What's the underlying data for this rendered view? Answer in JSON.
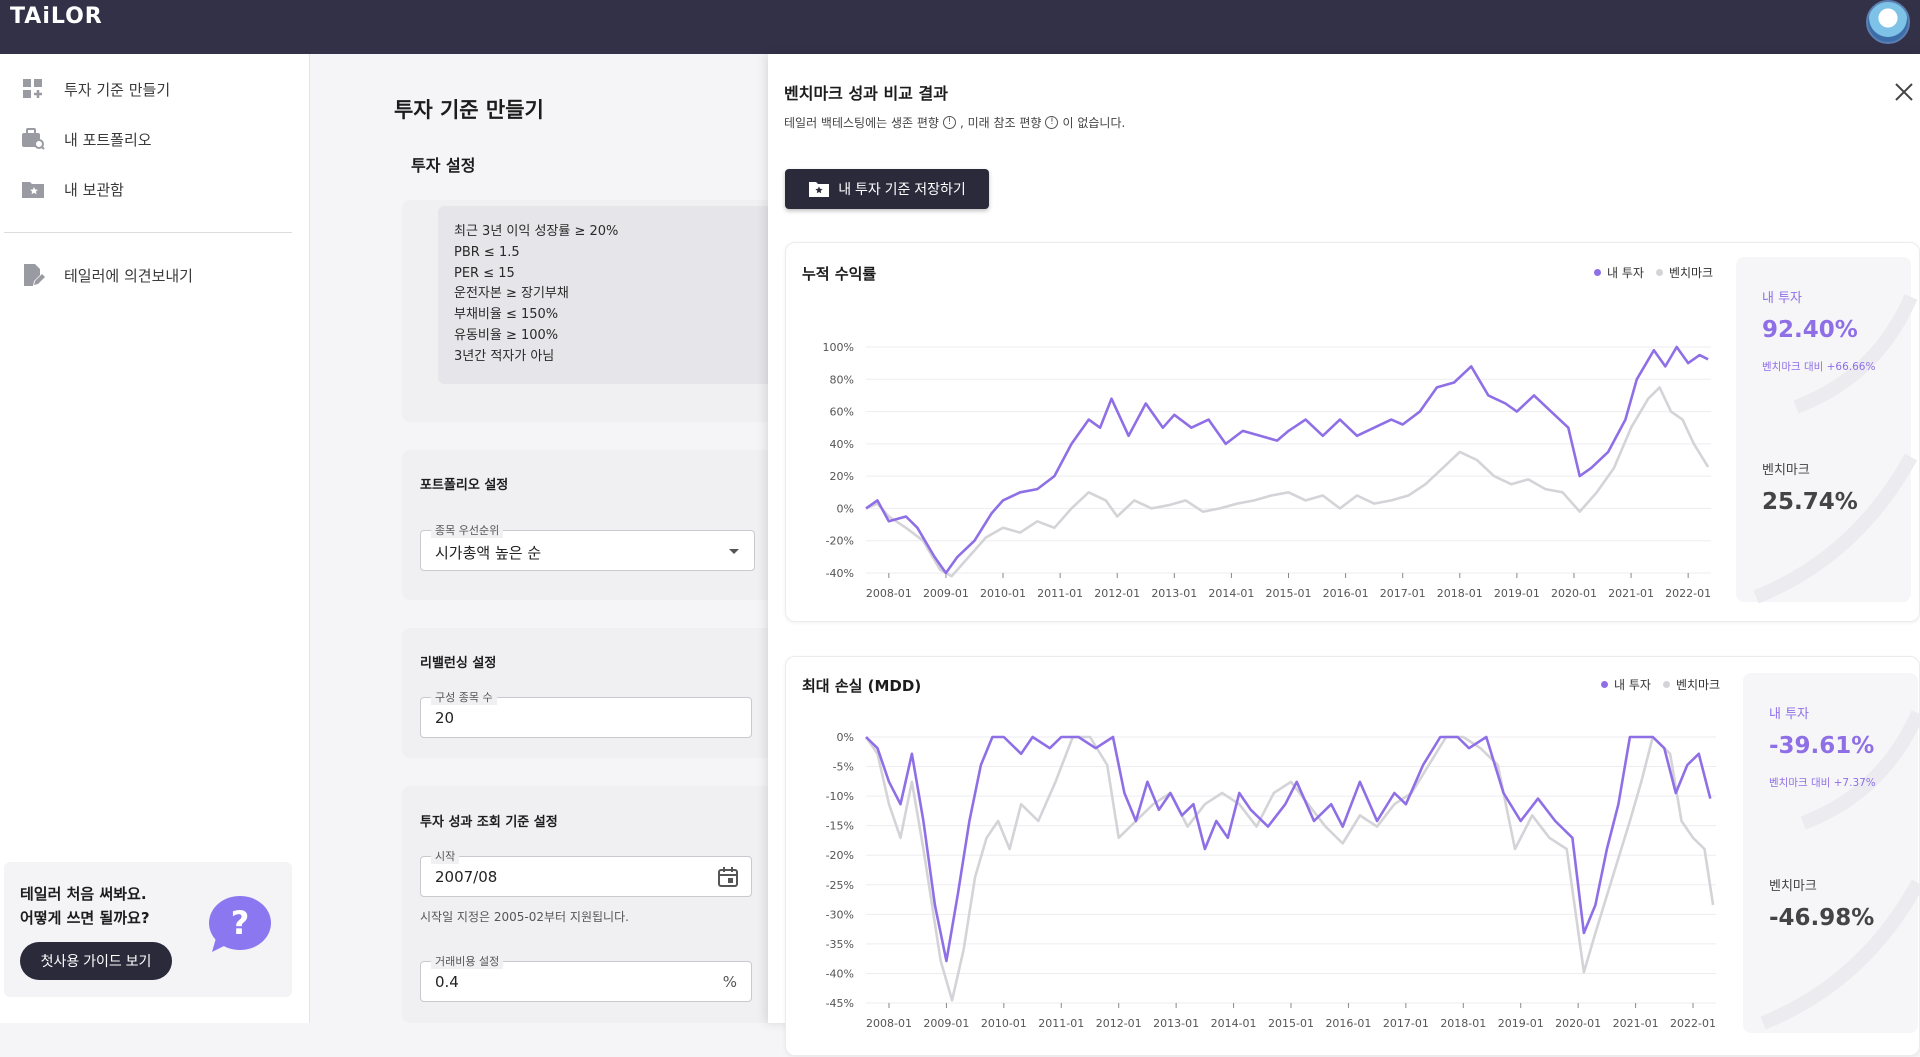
{
  "app": {
    "logo": "TAiLOR"
  },
  "sidebar": {
    "items": [
      {
        "label": "투자 기준 만들기",
        "icon": "dashboard-add-icon"
      },
      {
        "label": "내 포트폴리오",
        "icon": "portfolio-search-icon"
      },
      {
        "label": "내 보관함",
        "icon": "folder-star-icon"
      },
      {
        "label": "테일러에 의견보내기",
        "icon": "edit-note-icon"
      }
    ],
    "guide": {
      "line1": "테일러 처음 써봐요.",
      "line2": "어떻게 쓰면 될까요?",
      "button": "첫사용 가이드 보기"
    }
  },
  "main": {
    "title": "투자 기준 만들기",
    "investment_section": "투자 설정",
    "criteria": [
      "최근 3년 이익 성장률 ≥ 20%",
      "PBR ≤ 1.5",
      "PER ≤ 15",
      "운전자본 ≥ 장기부채",
      "부채비율 ≤ 150%",
      "유동비율 ≥ 100%",
      "3년간 적자가 아님"
    ],
    "portfolio": {
      "title": "포트폴리오 설정",
      "field_label": "종목 우선순위",
      "field_value": "시가총액 높은 순"
    },
    "rebalance": {
      "title": "리밸런싱 설정",
      "field_label": "구성 종목 수",
      "field_value": "20"
    },
    "period": {
      "title": "투자 성과 조회 기준 설정",
      "start_label": "시작",
      "start_value": "2007/08",
      "helper": "시작일 지정은 2005-02부터 지원됩니다.",
      "fee_label": "거래비용 설정",
      "fee_value": "0.4",
      "fee_unit": "%"
    }
  },
  "panel": {
    "title": "벤치마크 성과 비교 결과",
    "subtitle_part1": "테일러 백테스팅에는 생존 편향",
    "subtitle_part2": ", 미래 참조 편향",
    "subtitle_part3": "이 없습니다.",
    "info_glyph": "!",
    "save_button": "내 투자 기준 저장하기",
    "legend_mine": "내 투자",
    "legend_bench": "벤치마크"
  },
  "colors": {
    "mine": "#8f6fe6",
    "bench": "#d4d4d8",
    "topbar": "#333148",
    "button": "#2b2a3a"
  },
  "stats": {
    "cum": {
      "mine_label": "내 투자",
      "mine_value": "92.40%",
      "mine_note": "벤치마크 대비 +66.66%",
      "bench_label": "벤치마크",
      "bench_value": "25.74%"
    },
    "mdd": {
      "mine_label": "내 투자",
      "mine_value": "-39.61%",
      "mine_note": "벤치마크 대비 +7.37%",
      "bench_label": "벤치마크",
      "bench_value": "-46.98%"
    }
  },
  "chart_data": [
    {
      "type": "line",
      "title": "누적 수익률",
      "x_ticks": [
        "2008-01",
        "2009-01",
        "2010-01",
        "2011-01",
        "2012-01",
        "2013-01",
        "2014-01",
        "2015-01",
        "2016-01",
        "2017-01",
        "2018-01",
        "2019-01",
        "2020-01",
        "2021-01",
        "2022-01"
      ],
      "y_ticks": [
        "100%",
        "80%",
        "60%",
        "40%",
        "20%",
        "0%",
        "-20%",
        "-40%"
      ],
      "ylim": [
        -40,
        100
      ],
      "xlim": [
        2007.6,
        2022.4
      ],
      "series": [
        {
          "name": "내 투자",
          "points": [
            [
              2007.6,
              0
            ],
            [
              2007.8,
              5
            ],
            [
              2008.0,
              -8
            ],
            [
              2008.3,
              -5
            ],
            [
              2008.5,
              -12
            ],
            [
              2008.8,
              -30
            ],
            [
              2009.0,
              -40
            ],
            [
              2009.2,
              -30
            ],
            [
              2009.5,
              -20
            ],
            [
              2009.8,
              -3
            ],
            [
              2010.0,
              5
            ],
            [
              2010.3,
              10
            ],
            [
              2010.6,
              12
            ],
            [
              2010.9,
              20
            ],
            [
              2011.2,
              40
            ],
            [
              2011.5,
              55
            ],
            [
              2011.7,
              50
            ],
            [
              2011.9,
              68
            ],
            [
              2012.2,
              45
            ],
            [
              2012.5,
              65
            ],
            [
              2012.8,
              50
            ],
            [
              2013.0,
              58
            ],
            [
              2013.3,
              50
            ],
            [
              2013.6,
              55
            ],
            [
              2013.9,
              40
            ],
            [
              2014.2,
              48
            ],
            [
              2014.5,
              45
            ],
            [
              2014.8,
              42
            ],
            [
              2015.0,
              48
            ],
            [
              2015.3,
              55
            ],
            [
              2015.6,
              45
            ],
            [
              2015.9,
              55
            ],
            [
              2016.2,
              45
            ],
            [
              2016.5,
              50
            ],
            [
              2016.8,
              55
            ],
            [
              2017.0,
              52
            ],
            [
              2017.3,
              60
            ],
            [
              2017.6,
              75
            ],
            [
              2017.9,
              78
            ],
            [
              2018.2,
              88
            ],
            [
              2018.5,
              70
            ],
            [
              2018.8,
              65
            ],
            [
              2019.0,
              60
            ],
            [
              2019.3,
              70
            ],
            [
              2019.6,
              60
            ],
            [
              2019.9,
              50
            ],
            [
              2020.1,
              20
            ],
            [
              2020.3,
              25
            ],
            [
              2020.6,
              35
            ],
            [
              2020.9,
              55
            ],
            [
              2021.1,
              80
            ],
            [
              2021.4,
              98
            ],
            [
              2021.6,
              88
            ],
            [
              2021.8,
              100
            ],
            [
              2022.0,
              90
            ],
            [
              2022.2,
              95
            ],
            [
              2022.35,
              92.4
            ]
          ]
        },
        {
          "name": "벤치마크",
          "points": [
            [
              2007.6,
              0
            ],
            [
              2007.8,
              3
            ],
            [
              2008.0,
              -5
            ],
            [
              2008.3,
              -12
            ],
            [
              2008.6,
              -20
            ],
            [
              2008.9,
              -38
            ],
            [
              2009.1,
              -42
            ],
            [
              2009.4,
              -30
            ],
            [
              2009.7,
              -18
            ],
            [
              2010.0,
              -12
            ],
            [
              2010.3,
              -15
            ],
            [
              2010.6,
              -8
            ],
            [
              2010.9,
              -12
            ],
            [
              2011.2,
              0
            ],
            [
              2011.5,
              10
            ],
            [
              2011.8,
              5
            ],
            [
              2012.0,
              -5
            ],
            [
              2012.3,
              5
            ],
            [
              2012.6,
              0
            ],
            [
              2012.9,
              2
            ],
            [
              2013.2,
              5
            ],
            [
              2013.5,
              -2
            ],
            [
              2013.8,
              0
            ],
            [
              2014.1,
              3
            ],
            [
              2014.4,
              5
            ],
            [
              2014.7,
              8
            ],
            [
              2015.0,
              10
            ],
            [
              2015.3,
              5
            ],
            [
              2015.6,
              8
            ],
            [
              2015.9,
              0
            ],
            [
              2016.2,
              8
            ],
            [
              2016.5,
              3
            ],
            [
              2016.8,
              5
            ],
            [
              2017.1,
              8
            ],
            [
              2017.4,
              15
            ],
            [
              2017.7,
              25
            ],
            [
              2018.0,
              35
            ],
            [
              2018.3,
              30
            ],
            [
              2018.6,
              20
            ],
            [
              2018.9,
              15
            ],
            [
              2019.2,
              18
            ],
            [
              2019.5,
              12
            ],
            [
              2019.8,
              10
            ],
            [
              2020.1,
              -2
            ],
            [
              2020.4,
              10
            ],
            [
              2020.7,
              25
            ],
            [
              2021.0,
              50
            ],
            [
              2021.3,
              68
            ],
            [
              2021.5,
              75
            ],
            [
              2021.7,
              60
            ],
            [
              2021.9,
              55
            ],
            [
              2022.1,
              40
            ],
            [
              2022.35,
              25.74
            ]
          ]
        }
      ]
    },
    {
      "type": "line",
      "title": "최대 손실 (MDD)",
      "x_ticks": [
        "2008-01",
        "2009-01",
        "2010-01",
        "2011-01",
        "2012-01",
        "2013-01",
        "2014-01",
        "2015-01",
        "2016-01",
        "2017-01",
        "2018-01",
        "2019-01",
        "2020-01",
        "2021-01",
        "2022-01"
      ],
      "y_ticks": [
        "0%",
        "-5%",
        "-10%",
        "-15%",
        "-20%",
        "-25%",
        "-30%",
        "-35%",
        "-40%",
        "-45%"
      ],
      "ylim": [
        -47.5,
        0
      ],
      "xlim": [
        2007.6,
        2022.4
      ],
      "series": [
        {
          "name": "내 투자",
          "points": [
            [
              2007.6,
              0
            ],
            [
              2007.8,
              -2
            ],
            [
              2008.0,
              -8
            ],
            [
              2008.2,
              -12
            ],
            [
              2008.4,
              -3
            ],
            [
              2008.6,
              -15
            ],
            [
              2008.8,
              -30
            ],
            [
              2009.0,
              -40
            ],
            [
              2009.2,
              -28
            ],
            [
              2009.4,
              -15
            ],
            [
              2009.6,
              -5
            ],
            [
              2009.8,
              0
            ],
            [
              2010.0,
              0
            ],
            [
              2010.3,
              -3
            ],
            [
              2010.5,
              0
            ],
            [
              2010.8,
              -2
            ],
            [
              2011.0,
              0
            ],
            [
              2011.3,
              0
            ],
            [
              2011.6,
              -2
            ],
            [
              2011.9,
              0
            ],
            [
              2012.1,
              -10
            ],
            [
              2012.3,
              -15
            ],
            [
              2012.5,
              -8
            ],
            [
              2012.7,
              -13
            ],
            [
              2012.9,
              -10
            ],
            [
              2013.1,
              -14
            ],
            [
              2013.3,
              -12
            ],
            [
              2013.5,
              -20
            ],
            [
              2013.7,
              -15
            ],
            [
              2013.9,
              -18
            ],
            [
              2014.1,
              -10
            ],
            [
              2014.3,
              -13
            ],
            [
              2014.6,
              -16
            ],
            [
              2014.9,
              -12
            ],
            [
              2015.1,
              -8
            ],
            [
              2015.4,
              -15
            ],
            [
              2015.7,
              -12
            ],
            [
              2015.9,
              -16
            ],
            [
              2016.2,
              -8
            ],
            [
              2016.5,
              -15
            ],
            [
              2016.8,
              -10
            ],
            [
              2017.0,
              -12
            ],
            [
              2017.3,
              -5
            ],
            [
              2017.6,
              0
            ],
            [
              2017.9,
              0
            ],
            [
              2018.1,
              -2
            ],
            [
              2018.4,
              0
            ],
            [
              2018.7,
              -10
            ],
            [
              2019.0,
              -15
            ],
            [
              2019.3,
              -11
            ],
            [
              2019.6,
              -15
            ],
            [
              2019.9,
              -18
            ],
            [
              2020.1,
              -35
            ],
            [
              2020.3,
              -30
            ],
            [
              2020.5,
              -20
            ],
            [
              2020.7,
              -12
            ],
            [
              2020.9,
              0
            ],
            [
              2021.1,
              0
            ],
            [
              2021.3,
              0
            ],
            [
              2021.5,
              -2
            ],
            [
              2021.7,
              -10
            ],
            [
              2021.9,
              -5
            ],
            [
              2022.1,
              -3
            ],
            [
              2022.3,
              -11
            ]
          ]
        },
        {
          "name": "벤치마크",
          "points": [
            [
              2007.6,
              0
            ],
            [
              2007.8,
              -3
            ],
            [
              2008.0,
              -12
            ],
            [
              2008.2,
              -18
            ],
            [
              2008.4,
              -8
            ],
            [
              2008.6,
              -20
            ],
            [
              2008.9,
              -40
            ],
            [
              2009.1,
              -47
            ],
            [
              2009.3,
              -38
            ],
            [
              2009.5,
              -25
            ],
            [
              2009.7,
              -18
            ],
            [
              2009.9,
              -15
            ],
            [
              2010.1,
              -20
            ],
            [
              2010.3,
              -12
            ],
            [
              2010.6,
              -15
            ],
            [
              2010.9,
              -8
            ],
            [
              2011.2,
              0
            ],
            [
              2011.5,
              0
            ],
            [
              2011.8,
              -5
            ],
            [
              2012.0,
              -18
            ],
            [
              2012.3,
              -15
            ],
            [
              2012.6,
              -12
            ],
            [
              2012.9,
              -10
            ],
            [
              2013.2,
              -16
            ],
            [
              2013.5,
              -12
            ],
            [
              2013.8,
              -10
            ],
            [
              2014.1,
              -12
            ],
            [
              2014.4,
              -16
            ],
            [
              2014.7,
              -10
            ],
            [
              2015.0,
              -8
            ],
            [
              2015.3,
              -12
            ],
            [
              2015.6,
              -16
            ],
            [
              2015.9,
              -19
            ],
            [
              2016.2,
              -14
            ],
            [
              2016.5,
              -16
            ],
            [
              2016.8,
              -12
            ],
            [
              2017.1,
              -10
            ],
            [
              2017.4,
              -5
            ],
            [
              2017.7,
              0
            ],
            [
              2018.0,
              0
            ],
            [
              2018.3,
              -2
            ],
            [
              2018.6,
              -5
            ],
            [
              2018.9,
              -20
            ],
            [
              2019.2,
              -14
            ],
            [
              2019.5,
              -18
            ],
            [
              2019.8,
              -20
            ],
            [
              2020.1,
              -42
            ],
            [
              2020.3,
              -35
            ],
            [
              2020.6,
              -25
            ],
            [
              2020.9,
              -15
            ],
            [
              2021.1,
              -8
            ],
            [
              2021.3,
              0
            ],
            [
              2021.6,
              -3
            ],
            [
              2021.8,
              -15
            ],
            [
              2022.0,
              -18
            ],
            [
              2022.2,
              -20
            ],
            [
              2022.35,
              -30
            ]
          ]
        }
      ]
    }
  ]
}
